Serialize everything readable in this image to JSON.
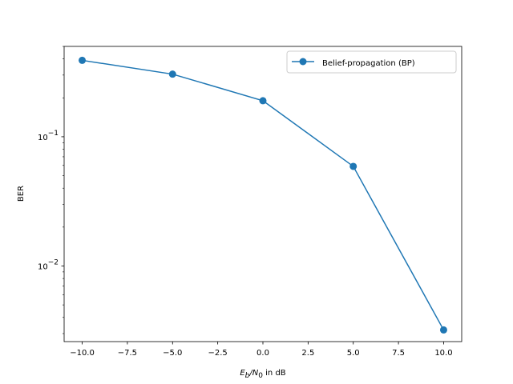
{
  "chart_data": {
    "type": "line",
    "title": "",
    "xlabel": {
      "e_main": "E",
      "e_sub": "b",
      "slash": "/N",
      "n_sub": "0",
      "rest": " in dB"
    },
    "ylabel": "BER",
    "yscale": "log",
    "xlim": [
      -11.0,
      11.0
    ],
    "ylim": [
      0.0026,
      0.5
    ],
    "x_ticks": [
      {
        "value": -10.0,
        "label": "−10.0"
      },
      {
        "value": -7.5,
        "label": "−7.5"
      },
      {
        "value": -5.0,
        "label": "−5.0"
      },
      {
        "value": -2.5,
        "label": "−2.5"
      },
      {
        "value": 0.0,
        "label": "0.0"
      },
      {
        "value": 2.5,
        "label": "2.5"
      },
      {
        "value": 5.0,
        "label": "5.0"
      },
      {
        "value": 7.5,
        "label": "7.5"
      },
      {
        "value": 10.0,
        "label": "10.0"
      }
    ],
    "y_ticks": [
      {
        "value": 0.1,
        "base": "10",
        "exp": "−1"
      },
      {
        "value": 0.01,
        "base": "10",
        "exp": "−2"
      }
    ],
    "grid": false,
    "legend_position": "top-right",
    "series": [
      {
        "name": "Belief-propagation (BP)",
        "color": "#1f77b4",
        "marker": "circle",
        "x": [
          -10,
          -5,
          0,
          5,
          10
        ],
        "y": [
          0.39,
          0.305,
          0.19,
          0.059,
          0.0032
        ]
      }
    ]
  }
}
